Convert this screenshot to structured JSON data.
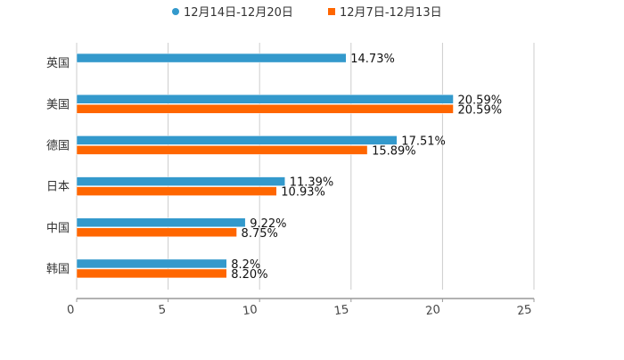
{
  "chart_data": {
    "type": "bar",
    "orientation": "horizontal",
    "title": "",
    "xlabel": "",
    "ylabel": "",
    "xlim": [
      0,
      25
    ],
    "xticks": [
      "0",
      "5",
      "10",
      "15",
      "20",
      "25"
    ],
    "grid": true,
    "legend_position": "top-center",
    "categories": [
      "英国",
      "美国",
      "德国",
      "日本",
      "中国",
      "韩国"
    ],
    "series": [
      {
        "name": "12月14日-12月20日",
        "color": "#3399cc",
        "values": [
          14.73,
          20.59,
          17.51,
          11.39,
          9.22,
          8.2
        ],
        "labels": [
          "14.73%",
          "20.59%",
          "17.51%",
          "11.39%",
          "9.22%",
          "8.2%"
        ]
      },
      {
        "name": "12月7日-12月13日",
        "color": "#ff6600",
        "values": [
          null,
          20.59,
          15.89,
          10.93,
          8.75,
          8.2
        ],
        "labels": [
          null,
          "20.59%",
          "15.89%",
          "10.93%",
          "8.75%",
          "8.20%"
        ]
      }
    ]
  }
}
